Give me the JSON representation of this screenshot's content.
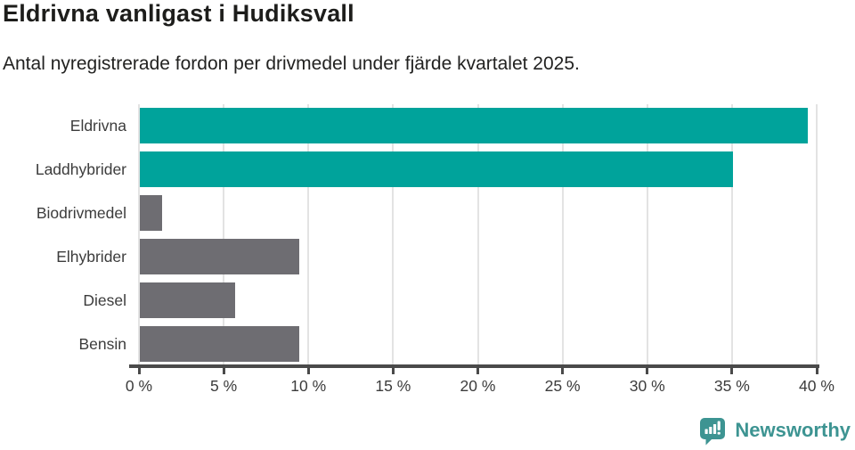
{
  "header": {
    "title": "Eldrivna vanligast i Hudiksvall",
    "subtitle": "Antal nyregistrerade fordon per drivmedel under fjärde kvartalet 2025."
  },
  "chart_data": {
    "type": "bar",
    "orientation": "horizontal",
    "title": "Eldrivna vanligast i Hudiksvall",
    "subtitle": "Antal nyregistrerade fordon per drivmedel under fjärde kvartalet 2025.",
    "categories": [
      "Eldrivna",
      "Laddhybrider",
      "Biodrivmedel",
      "Elhybrider",
      "Diesel",
      "Bensin"
    ],
    "values": [
      39.4,
      35.0,
      1.3,
      9.4,
      5.6,
      9.4
    ],
    "unit": "%",
    "bar_colors": [
      "#00a39b",
      "#00a39b",
      "#6e6d72",
      "#6e6d72",
      "#6e6d72",
      "#6e6d72"
    ],
    "xlabel": "",
    "ylabel": "",
    "xlim": [
      0,
      40
    ],
    "x_ticks": [
      0,
      5,
      10,
      15,
      20,
      25,
      30,
      35,
      40
    ],
    "x_tick_labels": [
      "0 %",
      "5 %",
      "10 %",
      "15 %",
      "20 %",
      "25 %",
      "30 %",
      "35 %",
      "40 %"
    ],
    "grid": "vertical",
    "legend": "none"
  },
  "footer": {
    "brand": "Newsworthy"
  },
  "colors": {
    "accent_teal": "#00a39b",
    "bar_gray": "#6e6d72",
    "gridline": "#e3e3e3",
    "axis": "#4a4a4a",
    "text_dark": "#1d1d1b",
    "label_gray": "#3c3c3c",
    "logo_teal": "#3d9492"
  }
}
